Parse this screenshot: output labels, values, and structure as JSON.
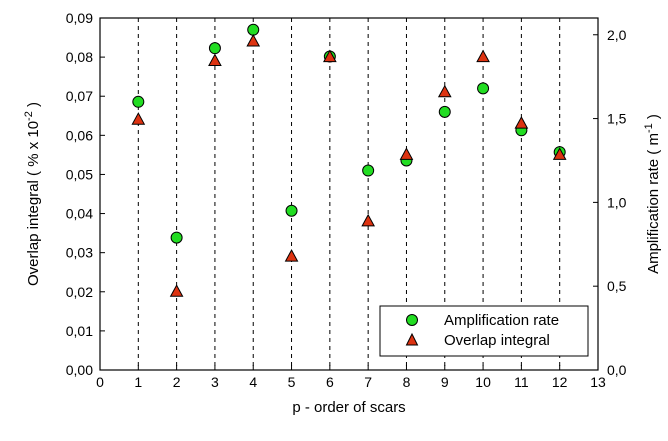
{
  "chart_data": {
    "type": "scatter",
    "xlabel": "p - order of scars",
    "ylabel": "Overlap integral ( % x 10",
    "ylabel_exp": "-2",
    "ylabel_close": " )",
    "y2label": "Amplification rate ( m",
    "y2label_exp": "-1",
    "y2label_close": " )",
    "xlim": [
      0,
      13
    ],
    "ylim": [
      0,
      0.09
    ],
    "y2lim": [
      0,
      2.1
    ],
    "x_ticks": [
      0,
      1,
      2,
      3,
      4,
      5,
      6,
      7,
      8,
      9,
      10,
      11,
      12,
      13
    ],
    "x_tick_labels": [
      "0",
      "1",
      "2",
      "3",
      "4",
      "5",
      "6",
      "7",
      "8",
      "9",
      "10",
      "11",
      "12",
      "13"
    ],
    "y_ticks": [
      0,
      0.01,
      0.02,
      0.03,
      0.04,
      0.05,
      0.06,
      0.07,
      0.08,
      0.09
    ],
    "y_tick_labels": [
      "0,00",
      "0,01",
      "0,02",
      "0,03",
      "0,04",
      "0,05",
      "0,06",
      "0,07",
      "0,08",
      "0,09"
    ],
    "y2_ticks": [
      0,
      0.5,
      1.0,
      1.5,
      2.0
    ],
    "y2_tick_labels": [
      "0,0",
      "0,5",
      "1,0",
      "1,5",
      "2,0"
    ],
    "grid": "vertical dashed at integer x",
    "legend_position": "bottom-right",
    "series": [
      {
        "name": "Amplification rate",
        "marker": "circle",
        "color": "#22dd22",
        "axis": "right",
        "x": [
          1,
          2,
          3,
          4,
          5,
          6,
          7,
          8,
          9,
          10,
          11,
          12
        ],
        "y": [
          1.6,
          0.79,
          1.92,
          2.03,
          0.95,
          1.87,
          1.19,
          1.25,
          1.54,
          1.68,
          1.43,
          1.3
        ]
      },
      {
        "name": "Overlap integral",
        "marker": "triangle",
        "color": "#dd3311",
        "axis": "left",
        "x": [
          1,
          2,
          3,
          4,
          5,
          6,
          7,
          8,
          9,
          10,
          11,
          12
        ],
        "y": [
          0.064,
          0.02,
          0.079,
          0.084,
          0.029,
          0.08,
          0.038,
          0.055,
          0.071,
          0.08,
          0.063,
          0.055
        ]
      }
    ]
  }
}
